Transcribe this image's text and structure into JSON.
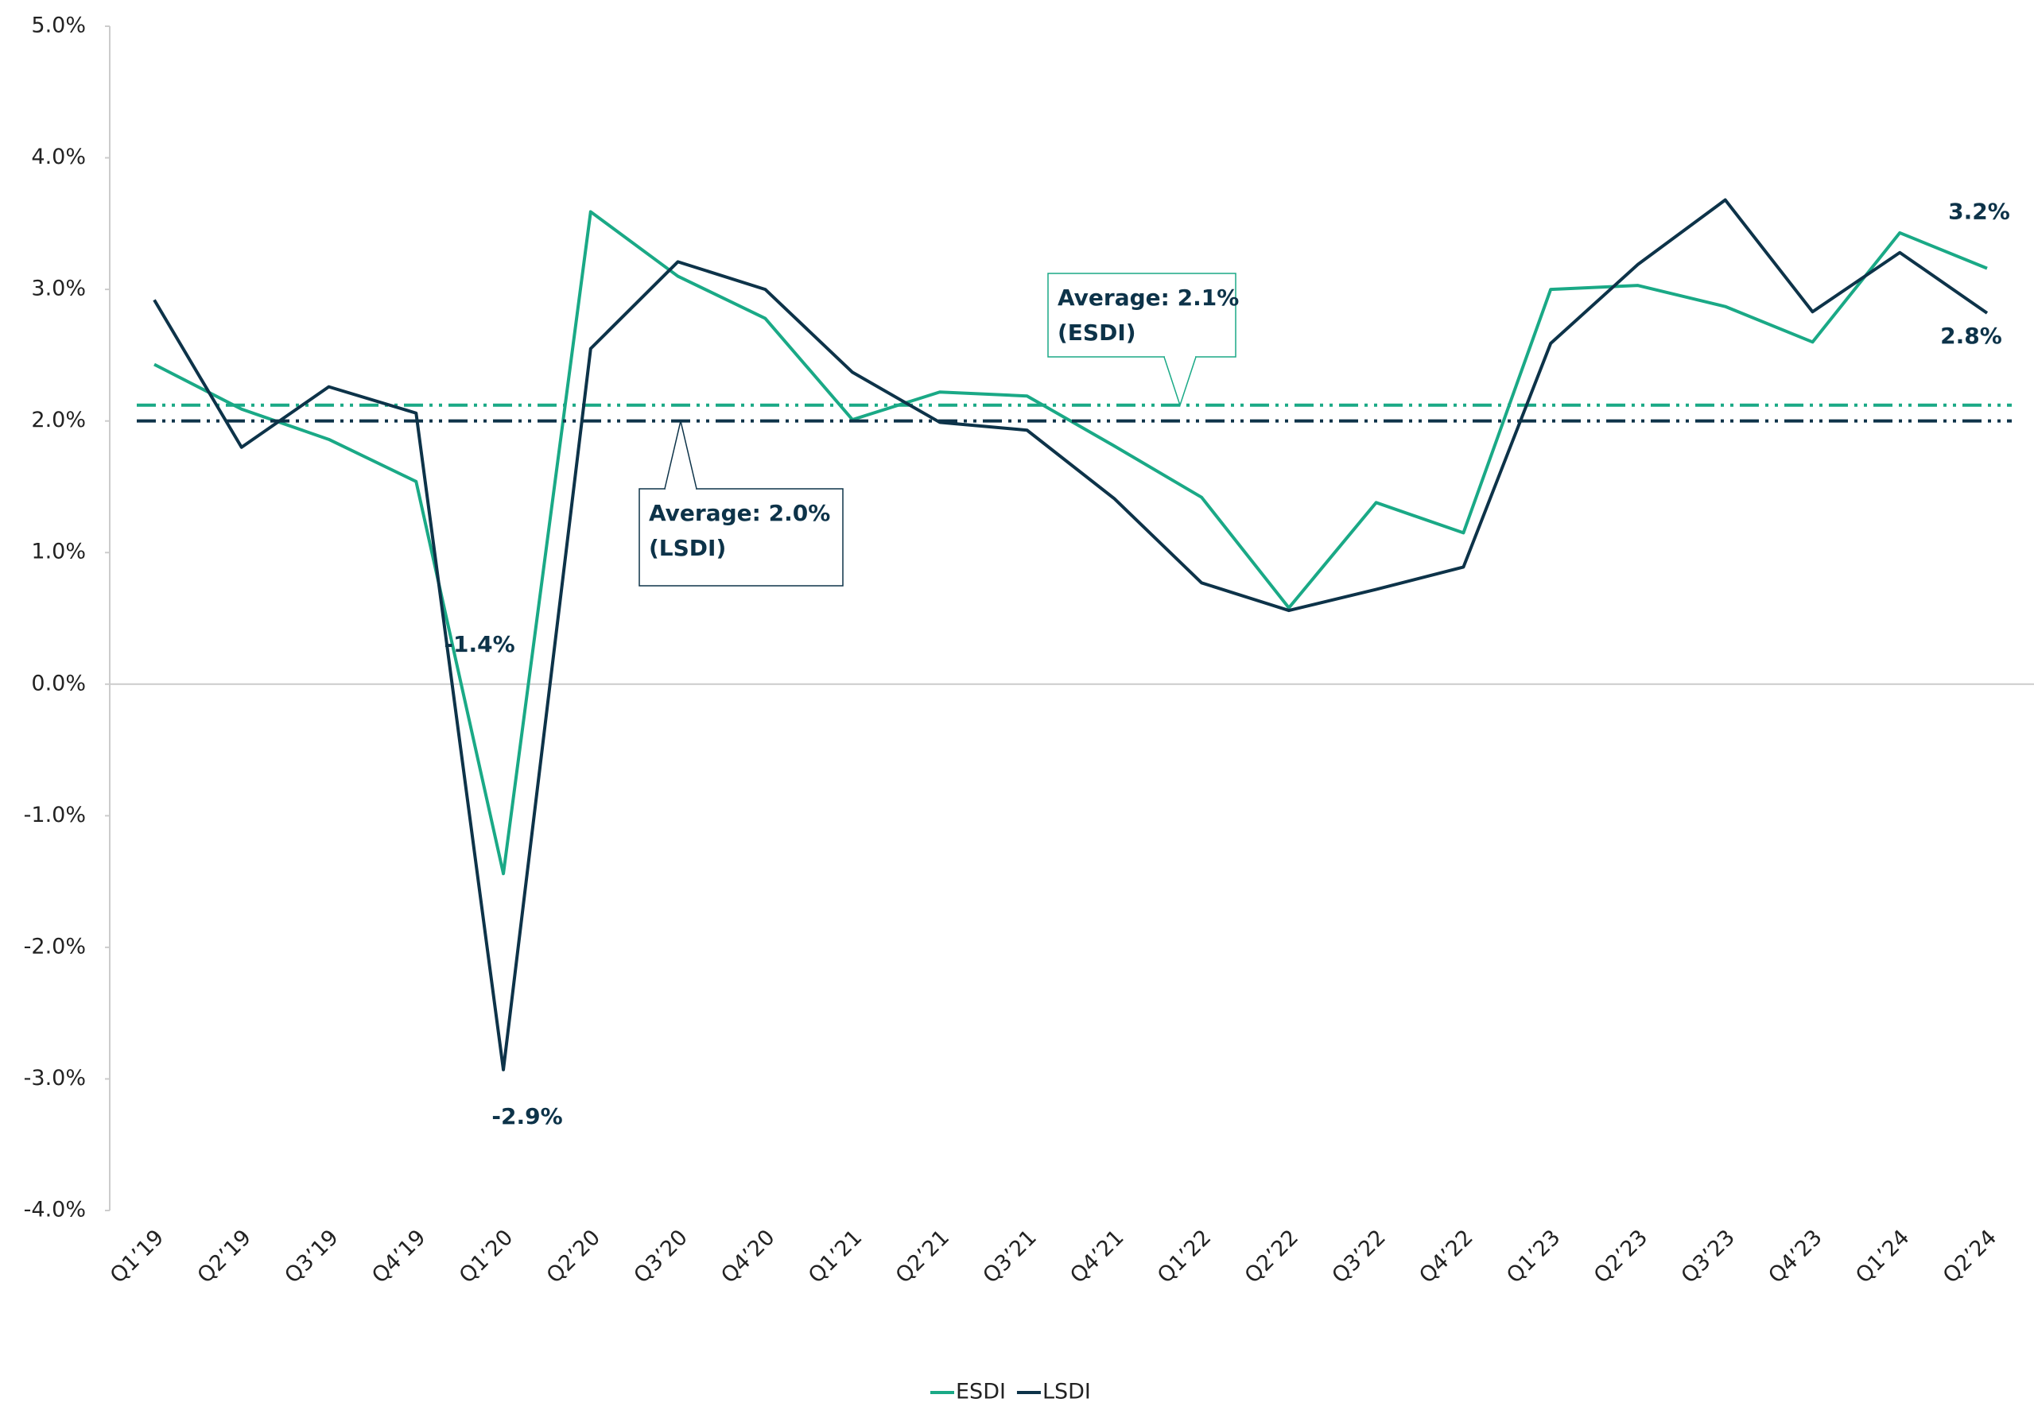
{
  "chart_data": {
    "type": "line",
    "categories": [
      "Q1’19",
      "Q2’19",
      "Q3’19",
      "Q4’19",
      "Q1’20",
      "Q2’20",
      "Q3’20",
      "Q4’20",
      "Q1’21",
      "Q2’21",
      "Q3’21",
      "Q4’21",
      "Q1’22",
      "Q2’22",
      "Q3’22",
      "Q4’22",
      "Q1’23",
      "Q2’23",
      "Q3’23",
      "Q4’23",
      "Q1’24",
      "Q2’24"
    ],
    "series": [
      {
        "name": "ESDI",
        "color": "#1aa986",
        "values": [
          2.43,
          2.09,
          1.86,
          1.54,
          -1.44,
          3.59,
          3.1,
          2.78,
          2.01,
          2.22,
          2.19,
          1.81,
          1.42,
          0.58,
          1.38,
          1.15,
          3.0,
          3.03,
          2.87,
          2.6,
          3.43,
          3.16
        ],
        "value_labels": [
          null,
          null,
          null,
          null,
          "-1.4%",
          null,
          null,
          null,
          null,
          null,
          null,
          null,
          null,
          null,
          null,
          null,
          null,
          null,
          null,
          null,
          null,
          "3.2%"
        ],
        "average": 2.12,
        "average_label": [
          "Average: 2.1%",
          "(ESDI)"
        ]
      },
      {
        "name": "LSDI",
        "color": "#0d3349",
        "values": [
          2.92,
          1.8,
          2.26,
          2.06,
          -2.93,
          2.55,
          3.21,
          3.0,
          2.37,
          1.99,
          1.93,
          1.41,
          0.77,
          0.56,
          0.72,
          0.89,
          2.59,
          3.19,
          3.68,
          2.83,
          3.28,
          2.82
        ],
        "value_labels": [
          null,
          null,
          null,
          null,
          "-2.9%",
          null,
          null,
          null,
          null,
          null,
          null,
          null,
          null,
          null,
          null,
          null,
          null,
          null,
          null,
          null,
          null,
          "2.8%"
        ],
        "average": 2.0,
        "average_label": [
          "Average: 2.0%",
          "(LSDI)"
        ]
      }
    ],
    "ylim": [
      -4,
      5
    ],
    "yticks": [
      {
        "value": -4,
        "label": "-4.0%"
      },
      {
        "value": -3,
        "label": "-3.0%"
      },
      {
        "value": -2,
        "label": "-2.0%"
      },
      {
        "value": -1,
        "label": "-1.0%"
      },
      {
        "value": 0,
        "label": "0.0%"
      },
      {
        "value": 1,
        "label": "1.0%"
      },
      {
        "value": 2,
        "label": "2.0%"
      },
      {
        "value": 3,
        "label": "3.0%"
      },
      {
        "value": 4,
        "label": "4.0%"
      },
      {
        "value": 5,
        "label": "5.0%"
      }
    ],
    "grid": false,
    "legend": "bottom"
  }
}
